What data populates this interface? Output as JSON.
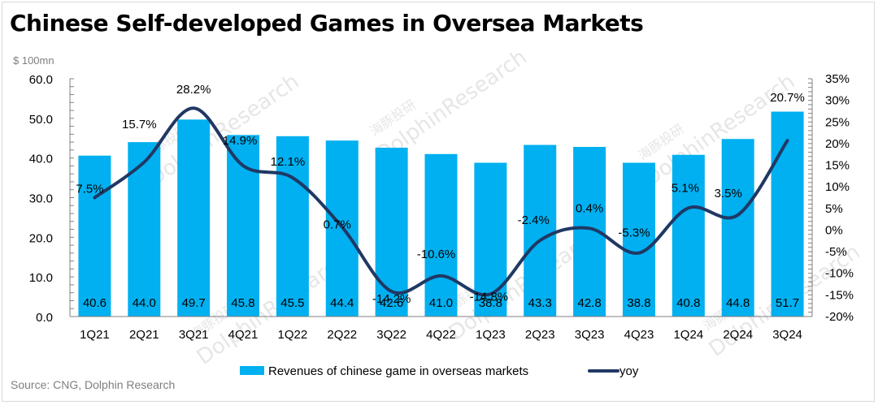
{
  "header": {
    "title": "Chinese Self-developed Games in Oversea Markets",
    "unit": "$ 100mn",
    "source": "Source: CNG, Dolphin Research"
  },
  "watermark": {
    "text": "DolphinResearch",
    "cn_text": "海豚投研"
  },
  "colors": {
    "bar": "#00B0F0",
    "line": "#203864",
    "axis": "#808080",
    "frame": "#d9d9d9"
  },
  "chart_data": {
    "type": "bar+line",
    "title": "Chinese Self-developed Games in Oversea Markets",
    "categories": [
      "1Q21",
      "2Q21",
      "3Q21",
      "4Q21",
      "1Q22",
      "2Q22",
      "3Q22",
      "4Q22",
      "1Q23",
      "2Q23",
      "3Q23",
      "4Q23",
      "1Q24",
      "2Q24",
      "3Q24"
    ],
    "series": [
      {
        "name": "Revenues of chinese game in overseas markets",
        "type": "bar",
        "axis": "left",
        "values": [
          40.6,
          44.0,
          49.7,
          45.8,
          45.5,
          44.4,
          42.6,
          41.0,
          38.8,
          43.3,
          42.8,
          38.8,
          40.8,
          44.8,
          51.7
        ],
        "labels": [
          "40.6",
          "44.0",
          "49.7",
          "45.8",
          "45.5",
          "44.4",
          "42.6",
          "41.0",
          "38.8",
          "43.3",
          "42.8",
          "38.8",
          "40.8",
          "44.8",
          "51.7"
        ]
      },
      {
        "name": "yoy",
        "type": "line",
        "axis": "right",
        "values": [
          7.5,
          15.7,
          28.2,
          14.9,
          12.1,
          0.7,
          -14.2,
          -10.6,
          -14.8,
          -2.4,
          0.4,
          -5.3,
          5.1,
          3.5,
          20.7
        ],
        "labels": [
          "7.5%",
          "15.7%",
          "28.2%",
          "14.9%",
          "12.1%",
          "0.7%",
          "-14.2%",
          "-10.6%",
          "-14.8%",
          "-2.4%",
          "0.4%",
          "-5.3%",
          "5.1%",
          "3.5%",
          "20.7%"
        ]
      }
    ],
    "ylabel": "$ 100mn",
    "ylim": [
      0,
      60
    ],
    "yticks": [
      "0.0",
      "10.0",
      "20.0",
      "30.0",
      "40.0",
      "50.0",
      "60.0"
    ],
    "ytick_values": [
      0,
      10,
      20,
      30,
      40,
      50,
      60
    ],
    "y2lim": [
      -20,
      35
    ],
    "y2ticks": [
      "-20%",
      "-15%",
      "-10%",
      "-5%",
      "0%",
      "5%",
      "10%",
      "15%",
      "20%",
      "25%",
      "30%",
      "35%"
    ],
    "y2tick_values": [
      -20,
      -15,
      -10,
      -5,
      0,
      5,
      10,
      15,
      20,
      25,
      30,
      35
    ],
    "grid": false,
    "legend": {
      "position": "bottom",
      "entries": [
        "Revenues of chinese game in overseas markets",
        "yoy"
      ]
    }
  }
}
